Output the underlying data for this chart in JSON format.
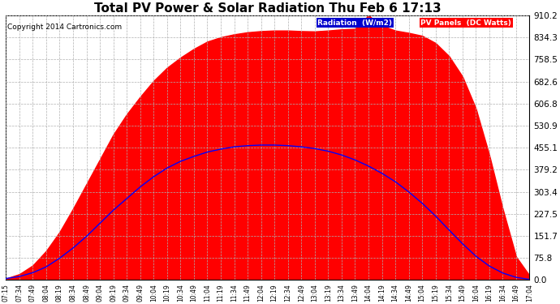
{
  "title": "Total PV Power & Solar Radiation Thu Feb 6 17:13",
  "copyright": "Copyright 2014 Cartronics.com",
  "yticks": [
    0.0,
    75.8,
    151.7,
    227.5,
    303.4,
    379.2,
    455.1,
    530.9,
    606.8,
    682.6,
    758.5,
    834.3,
    910.2
  ],
  "ymax": 910.2,
  "ymin": 0.0,
  "x_labels": [
    "07:15",
    "07:34",
    "07:49",
    "08:04",
    "08:19",
    "08:34",
    "08:49",
    "09:04",
    "09:19",
    "09:34",
    "09:49",
    "10:04",
    "10:19",
    "10:34",
    "10:49",
    "11:04",
    "11:19",
    "11:34",
    "11:49",
    "12:04",
    "12:19",
    "12:34",
    "12:49",
    "13:04",
    "13:19",
    "13:34",
    "13:49",
    "14:04",
    "14:19",
    "14:34",
    "14:49",
    "15:04",
    "15:19",
    "15:34",
    "15:49",
    "16:04",
    "16:19",
    "16:34",
    "16:49",
    "17:04"
  ],
  "pv_color": "#ff0000",
  "radiation_color": "#0000ff",
  "background_color": "#ffffff",
  "grid_color": "#b0b0b0",
  "legend_radiation_bg": "#0000cc",
  "legend_pv_bg": "#ff0000",
  "legend_radiation_text": "Radiation  (W/m2)",
  "legend_pv_text": "PV Panels  (DC Watts)",
  "title_fontsize": 11,
  "copyright_fontsize": 6.5,
  "tick_fontsize": 5.5,
  "ytick_fontsize": 7.5,
  "pv_values": [
    5,
    20,
    50,
    100,
    165,
    245,
    330,
    415,
    500,
    570,
    630,
    685,
    730,
    765,
    795,
    820,
    835,
    845,
    852,
    856,
    858,
    858,
    856,
    855,
    858,
    862,
    864,
    910,
    875,
    858,
    850,
    840,
    815,
    770,
    700,
    590,
    430,
    245,
    80,
    15
  ],
  "radiation_values": [
    5,
    12,
    25,
    45,
    75,
    110,
    150,
    195,
    240,
    280,
    320,
    355,
    385,
    408,
    425,
    440,
    450,
    458,
    462,
    464,
    464,
    462,
    458,
    452,
    443,
    430,
    413,
    392,
    367,
    338,
    303,
    264,
    220,
    172,
    125,
    82,
    48,
    24,
    9,
    2
  ]
}
